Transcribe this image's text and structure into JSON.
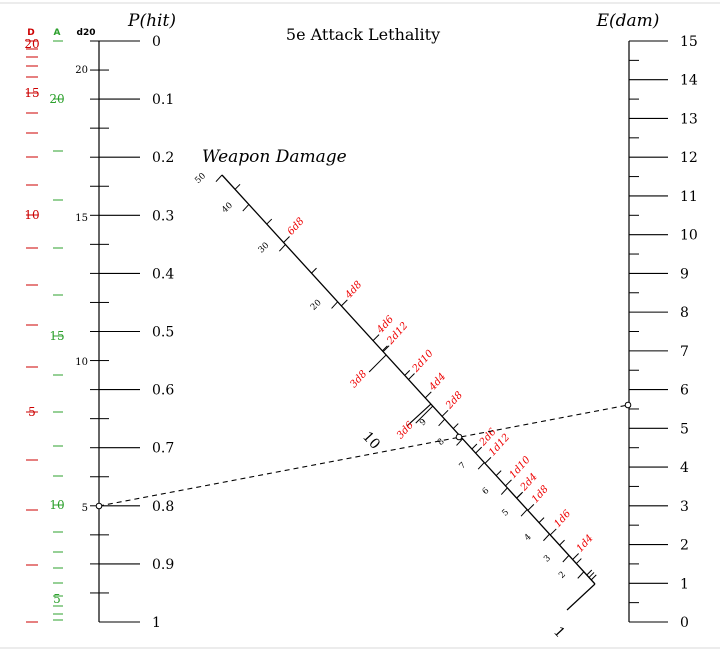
{
  "title": "5e Attack Lethality",
  "phit_axis": {
    "label": "P(hit)",
    "ticks": [
      "0",
      "0.1",
      "0.2",
      "0.3",
      "0.4",
      "0.5",
      "0.6",
      "0.7",
      "0.8",
      "0.9",
      "1"
    ]
  },
  "edam_axis": {
    "label": "E(dam)",
    "ticks": [
      "15",
      "14",
      "13",
      "12",
      "11",
      "10",
      "9",
      "8",
      "7",
      "6",
      "5",
      "4",
      "3",
      "2",
      "1",
      "0"
    ]
  },
  "column_headers": {
    "d": "D",
    "a": "A",
    "d20": "d20"
  },
  "d20_labels": [
    "20",
    "15",
    "10",
    "5"
  ],
  "d_labels": [
    "20",
    "15",
    "10",
    "5"
  ],
  "a_labels": [
    "20",
    "15",
    "10",
    "5"
  ],
  "weapon_axis": {
    "label": "Weapon Damage",
    "numbers": [
      "50",
      "40",
      "30",
      "20",
      "10",
      "9",
      "8",
      "7",
      "6",
      "5",
      "4",
      "3",
      "2",
      "1"
    ],
    "dice": [
      "6d8",
      "4d8",
      "4d6",
      "2d12",
      "3d8",
      "2d10",
      "4d4",
      "3d6",
      "2d8",
      "2d6",
      "1d12",
      "1d10",
      "2d4",
      "1d8",
      "1d6",
      "1d4"
    ]
  },
  "example": {
    "phit": 0.8,
    "weapon": "7",
    "edam": 5.6
  },
  "colors": {
    "d_scale": "#cc0000",
    "a_scale": "#2ca02c",
    "dice": "#ee0000",
    "lines": "#000000"
  }
}
